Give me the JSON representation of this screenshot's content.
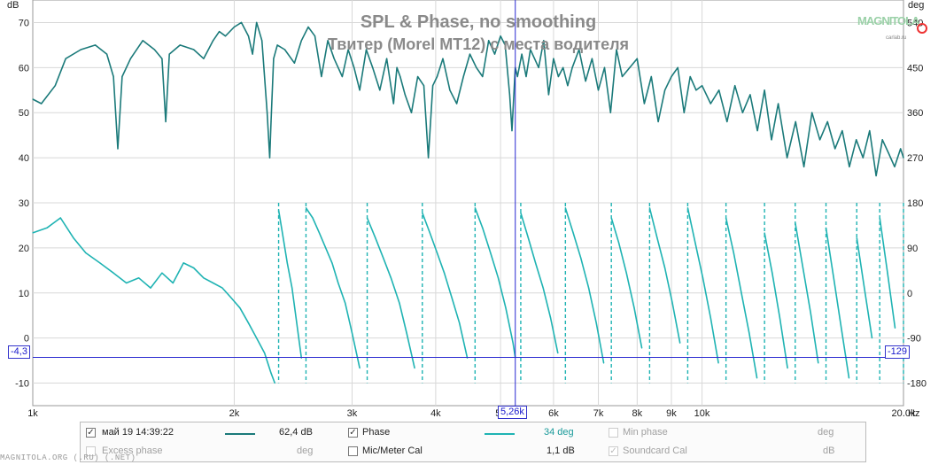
{
  "chart_data": {
    "type": "line",
    "title": "SPL & Phase, no smoothing",
    "subtitle": "Твитер (Morel MT12) с места водителя",
    "left_axis_unit": "dB",
    "right_axis_unit": "deg",
    "x_axis_unit": "Hz",
    "x_scale": "log",
    "xlim": [
      1000,
      20000
    ],
    "ylim_left": [
      -15,
      75
    ],
    "ylim_right": [
      -225,
      585
    ],
    "left_ticks": [
      70,
      60,
      50,
      40,
      30,
      20,
      10,
      0,
      -10
    ],
    "right_ticks": [
      540,
      450,
      360,
      270,
      180,
      90,
      0,
      -90,
      -180
    ],
    "x_ticks": [
      {
        "value": 1000,
        "label": "1k"
      },
      {
        "value": 2000,
        "label": "2k"
      },
      {
        "value": 3000,
        "label": "3k"
      },
      {
        "value": 4000,
        "label": "4k"
      },
      {
        "value": 5000,
        "label": "5k"
      },
      {
        "value": 6000,
        "label": "6k"
      },
      {
        "value": 7000,
        "label": "7k"
      },
      {
        "value": 8000,
        "label": "8k"
      },
      {
        "value": 9000,
        "label": "9k"
      },
      {
        "value": 10000,
        "label": "10k"
      },
      {
        "value": 20000,
        "label": "20,0k"
      }
    ],
    "cursor": {
      "x_label": "5,26k",
      "x_value": 5260,
      "y_left_label": "-4,3",
      "y_right_label": "-129",
      "y_value": -4.3
    },
    "colors": {
      "spl": "#1b7a7a",
      "phase": "#1fb3b3",
      "grid": "#d8d8d8",
      "cursor": "#2a2ad0"
    },
    "grid": true,
    "series": [
      {
        "name": "май 19 14:39:22",
        "axis": "left",
        "x": [
          1000,
          1030,
          1080,
          1120,
          1180,
          1240,
          1290,
          1320,
          1340,
          1360,
          1400,
          1460,
          1520,
          1560,
          1580,
          1600,
          1660,
          1740,
          1800,
          1860,
          1900,
          1940,
          2000,
          2050,
          2100,
          2130,
          2160,
          2200,
          2240,
          2260,
          2270,
          2290,
          2320,
          2380,
          2460,
          2520,
          2580,
          2640,
          2700,
          2760,
          2820,
          2900,
          2960,
          3020,
          3080,
          3150,
          3220,
          3300,
          3380,
          3460,
          3500,
          3540,
          3600,
          3680,
          3760,
          3840,
          3900,
          3960,
          4020,
          4100,
          4200,
          4300,
          4400,
          4500,
          4600,
          4700,
          4800,
          4900,
          5000,
          5080,
          5160,
          5200,
          5260,
          5300,
          5380,
          5460,
          5540,
          5620,
          5700,
          5800,
          5900,
          6000,
          6100,
          6200,
          6300,
          6400,
          6550,
          6700,
          6850,
          7000,
          7150,
          7300,
          7450,
          7600,
          7800,
          8000,
          8200,
          8400,
          8600,
          8800,
          9000,
          9200,
          9400,
          9600,
          9800,
          10000,
          10300,
          10600,
          10900,
          11200,
          11500,
          11800,
          12100,
          12400,
          12700,
          13000,
          13400,
          13800,
          14200,
          14600,
          15000,
          15400,
          15800,
          16200,
          16600,
          17000,
          17400,
          17800,
          18200,
          18600,
          19000,
          19400,
          19800,
          20000
        ],
        "y": [
          53,
          52,
          56,
          62,
          64,
          65,
          63,
          58,
          42,
          58,
          62,
          66,
          64,
          62,
          48,
          63,
          65,
          64,
          62,
          66,
          68,
          67,
          69,
          70,
          67,
          63,
          70,
          66,
          50,
          40,
          48,
          62,
          65,
          64,
          61,
          66,
          69,
          67,
          58,
          66,
          62,
          58,
          64,
          60,
          55,
          64,
          60,
          55,
          62,
          52,
          60,
          58,
          54,
          50,
          58,
          56,
          40,
          56,
          58,
          62,
          55,
          52,
          58,
          63,
          60,
          58,
          66,
          63,
          67,
          65,
          54,
          46,
          60,
          58,
          63,
          58,
          64,
          62,
          60,
          66,
          54,
          62,
          58,
          60,
          56,
          60,
          64,
          57,
          62,
          55,
          60,
          50,
          64,
          58,
          60,
          62,
          52,
          58,
          48,
          55,
          58,
          60,
          50,
          58,
          55,
          56,
          52,
          55,
          48,
          56,
          50,
          54,
          46,
          55,
          44,
          52,
          40,
          48,
          38,
          50,
          44,
          48,
          42,
          46,
          38,
          44,
          40,
          46,
          36,
          44,
          41,
          38,
          42,
          40
        ]
      },
      {
        "name": "Phase",
        "axis": "right",
        "x": [
          1000,
          1050,
          1100,
          1150,
          1200,
          1260,
          1320,
          1380,
          1440,
          1500,
          1560,
          1620,
          1680,
          1740,
          1800,
          1860,
          1920,
          1980,
          2040,
          2100,
          2160,
          2220,
          2270,
          2300,
          2330,
          2360,
          2400,
          2440,
          2480,
          2520,
          2560,
          2620,
          2680,
          2740,
          2800,
          2860,
          2930,
          3000,
          3080,
          3160,
          3250,
          3340,
          3430,
          3530,
          3620,
          3720,
          3820,
          3920,
          4020,
          4120,
          4230,
          4340,
          4460,
          4580,
          4700,
          4830,
          4960,
          5090,
          5220,
          5260,
          5360,
          5500,
          5640,
          5790,
          5940,
          6090,
          6250,
          6420,
          6590,
          6770,
          6950,
          7130,
          7320,
          7510,
          7710,
          7920,
          8130,
          8350,
          8570,
          8800,
          9030,
          9270,
          9520,
          9770,
          10030,
          10300,
          10580,
          10860,
          11150,
          11450,
          11760,
          12080,
          12400,
          12730,
          13070,
          13420,
          13780,
          14150,
          14530,
          14920,
          15320,
          15730,
          16150,
          16580,
          17030,
          17480,
          17950,
          18430,
          18930,
          19430,
          20000
        ],
        "y": [
          120,
          130,
          150,
          110,
          80,
          60,
          40,
          20,
          30,
          10,
          40,
          20,
          60,
          50,
          30,
          20,
          10,
          -10,
          -30,
          -60,
          -90,
          -120,
          -160,
          -180,
          165,
          120,
          60,
          10,
          -60,
          -130,
          170,
          150,
          120,
          90,
          60,
          20,
          -20,
          -80,
          -150,
          150,
          110,
          70,
          30,
          -20,
          -80,
          -150,
          160,
          120,
          80,
          40,
          -10,
          -60,
          -130,
          170,
          130,
          80,
          30,
          -30,
          -100,
          -129,
          160,
          110,
          60,
          10,
          -50,
          -120,
          170,
          120,
          70,
          10,
          -60,
          -140,
          150,
          100,
          40,
          -30,
          -110,
          170,
          110,
          50,
          -20,
          -100,
          170,
          100,
          30,
          -50,
          -140,
          150,
          80,
          0,
          -80,
          -170,
          120,
          40,
          -50,
          -150,
          140,
          50,
          -40,
          -140,
          130,
          30,
          -70,
          -170,
          110,
          10,
          -90,
          150,
          40,
          -70,
          120
        ]
      }
    ],
    "legend": {
      "row1": {
        "label": "май 19 14:39:22",
        "value": "62,4 dB",
        "phase_label": "Phase",
        "phase_value": "34 deg",
        "min_phase_label": "Min phase",
        "min_phase_unit": "deg"
      },
      "row2": {
        "excess_label": "Excess phase",
        "excess_unit": "deg",
        "mic_label": "Mic/Meter Cal",
        "mic_value": "1,1 dB",
        "soundcard_label": "Soundcard Cal",
        "soundcard_unit": "dB"
      }
    }
  },
  "watermark": {
    "brand": "MAGNITOLA",
    "sub": "carlab.ru"
  },
  "footer": "MAGNITOLA.ORG (.RU) (.NET)"
}
